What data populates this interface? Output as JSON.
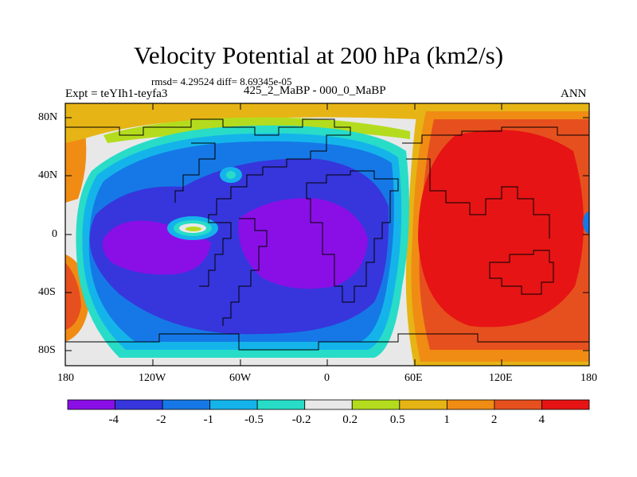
{
  "header": {
    "title": "Velocity Potential at 200 hPa (km2/s)",
    "stats": "rmsd= 4.29524 diff= 8.69345e-05",
    "experiment": "Expt = teYIh1-teyfa3",
    "period": "425_2_MaBP - 000_0_MaBP",
    "season": "ANN"
  },
  "axes": {
    "y_ticks": [
      "80N",
      "40N",
      "0",
      "40S",
      "80S"
    ],
    "x_ticks": [
      "180",
      "120W",
      "60W",
      "0",
      "60E",
      "120E",
      "180"
    ]
  },
  "legend": {
    "labels": [
      "-4",
      "-2",
      "-1",
      "-0.5",
      "-0.2",
      "0.2",
      "0.5",
      "1",
      "2",
      "4"
    ],
    "colors": [
      "#8a0fe6",
      "#3636dc",
      "#1678e6",
      "#14b4eb",
      "#28dcc8",
      "#e8e8e8",
      "#b4dc1e",
      "#e6b414",
      "#f08c14",
      "#e6501e",
      "#e61414"
    ]
  },
  "colors": {
    "background": "#ffffff",
    "coast": "#000000"
  }
}
